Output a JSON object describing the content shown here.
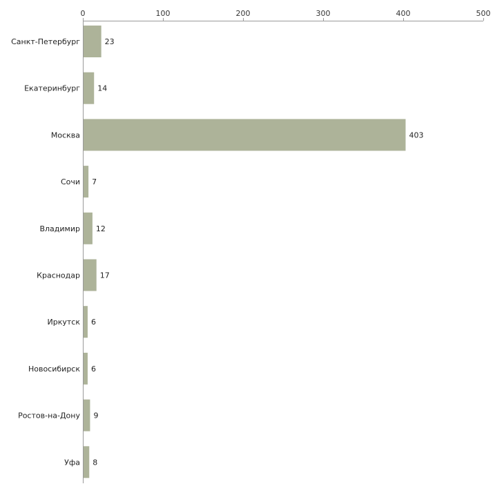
{
  "chart_data": {
    "type": "bar",
    "orientation": "horizontal",
    "title": "",
    "xlabel": "",
    "ylabel": "",
    "xlim": [
      0,
      500
    ],
    "ticks": [
      0,
      100,
      200,
      300,
      400,
      500
    ],
    "tick_labels": [
      "0",
      "100",
      "200",
      "300",
      "400",
      "500"
    ],
    "grid": false,
    "legend": "none",
    "bar_color": "#adb399",
    "axis_color": "#999999",
    "categories": [
      "Санкт-Петербург",
      "Екатеринбург",
      "Москва",
      "Сочи",
      "Владимир",
      "Краснодар",
      "Иркутск",
      "Новосибирск",
      "Ростов-на-Дону",
      "Уфа"
    ],
    "values": [
      23,
      14,
      403,
      7,
      12,
      17,
      6,
      6,
      9,
      8
    ],
    "value_labels": [
      "23",
      "14",
      "403",
      "7",
      "12",
      "17",
      "6",
      "6",
      "9",
      "8"
    ]
  }
}
